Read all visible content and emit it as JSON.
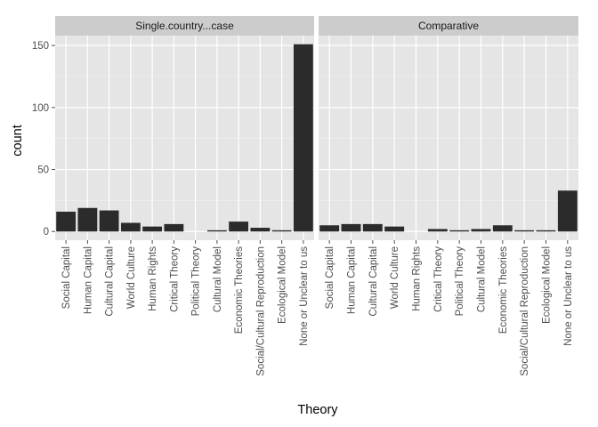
{
  "chart_data": {
    "type": "bar",
    "xlabel": "Theory",
    "ylabel": "count",
    "ylim": [
      -7,
      158
    ],
    "yticks": [
      0,
      50,
      100,
      150
    ],
    "grid": true,
    "categories": [
      "Social Capital",
      "Human Capital",
      "Cultural Capital",
      "World Culture",
      "Human Rights",
      "Critical Theory",
      "Political Theory",
      "Cultural Model",
      "Economic Theories",
      "Social/Cultural Reproduction",
      "Ecological Model",
      "None or Unclear to us"
    ],
    "facets": [
      {
        "label": "Single.country...case",
        "values": [
          16,
          19,
          17,
          7,
          4,
          6,
          0,
          1,
          8,
          3,
          1,
          151
        ]
      },
      {
        "label": "Comparative",
        "values": [
          5,
          6,
          6,
          4,
          0,
          2,
          1,
          2,
          5,
          1,
          1,
          33
        ]
      }
    ],
    "colors": {
      "bar": "#2b2b2b",
      "panel_background": "#e5e5e5",
      "strip_background": "#cccccc",
      "grid": "#ffffff"
    }
  }
}
